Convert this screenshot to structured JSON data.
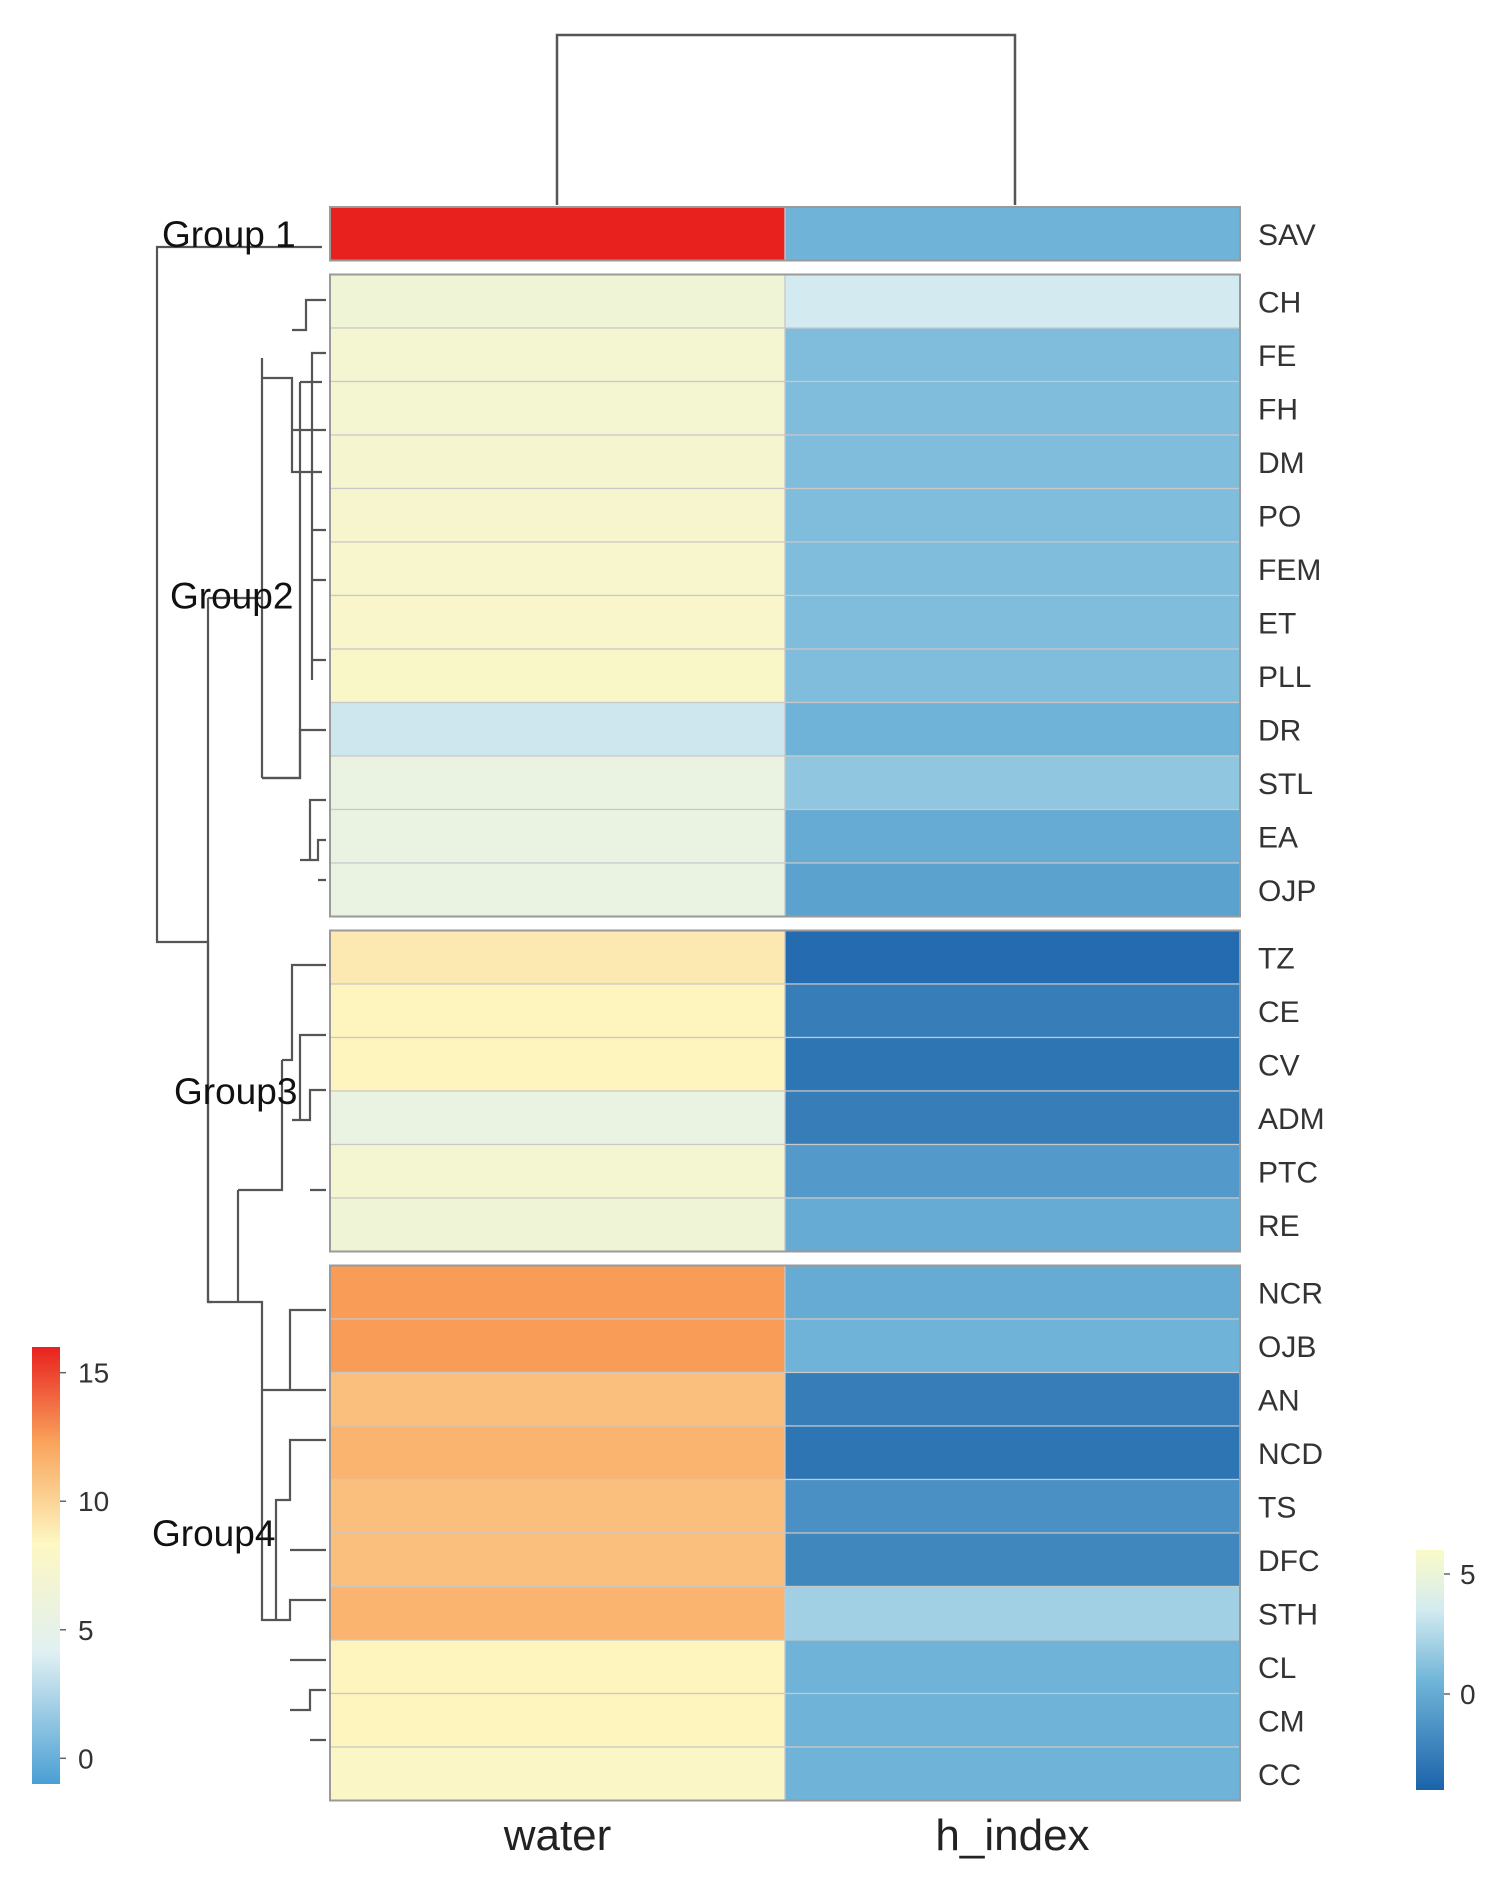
{
  "chart_data": {
    "type": "heatmap",
    "columns": [
      "water",
      "h_index"
    ],
    "groups": [
      {
        "label": "Group 1",
        "rows": [
          "SAV"
        ]
      },
      {
        "label": "Group2",
        "rows": [
          "CH",
          "FE",
          "FH",
          "DM",
          "PO",
          "FEM",
          "ET",
          "PLL",
          "DR",
          "STL",
          "EA",
          "OJP"
        ]
      },
      {
        "label": "Group3",
        "rows": [
          "TZ",
          "CE",
          "CV",
          "ADM",
          "PTC",
          "RE"
        ]
      },
      {
        "label": "Group4",
        "rows": [
          "NCR",
          "OJB",
          "AN",
          "NCD",
          "TS",
          "DFC",
          "STH",
          "CL",
          "CM",
          "CC"
        ]
      }
    ],
    "rows": [
      "SAV",
      "CH",
      "FE",
      "FH",
      "DM",
      "PO",
      "FEM",
      "ET",
      "PLL",
      "DR",
      "STL",
      "EA",
      "OJP",
      "TZ",
      "CE",
      "CV",
      "ADM",
      "PTC",
      "RE",
      "NCR",
      "OJB",
      "AN",
      "NCD",
      "TS",
      "DFC",
      "STH",
      "CL",
      "CM",
      "CC"
    ],
    "water": [
      16,
      6.5,
      7,
      7,
      7.2,
      7.3,
      7.5,
      7.6,
      7.8,
      3.5,
      5.5,
      5.5,
      5.5,
      9,
      8.5,
      8.5,
      5.5,
      7,
      6.5,
      12.5,
      12.5,
      11,
      11.5,
      11,
      11,
      11.5,
      8.5,
      8.5,
      8
    ],
    "h_index": [
      0.5,
      3.5,
      1,
      1,
      1,
      1,
      1,
      1,
      1,
      0.5,
      1.5,
      0,
      -0.5,
      -3.5,
      -2.5,
      -3,
      -2.5,
      -1,
      0,
      0,
      0.5,
      -2.5,
      -3,
      -1.5,
      -2,
      2,
      0.5,
      0.5,
      0.5
    ],
    "water_legend": {
      "ticks": [
        0,
        5,
        10,
        15
      ],
      "range": [
        -1,
        16
      ]
    },
    "h_index_legend": {
      "ticks": [
        0,
        5
      ],
      "range": [
        -4,
        6
      ]
    }
  }
}
